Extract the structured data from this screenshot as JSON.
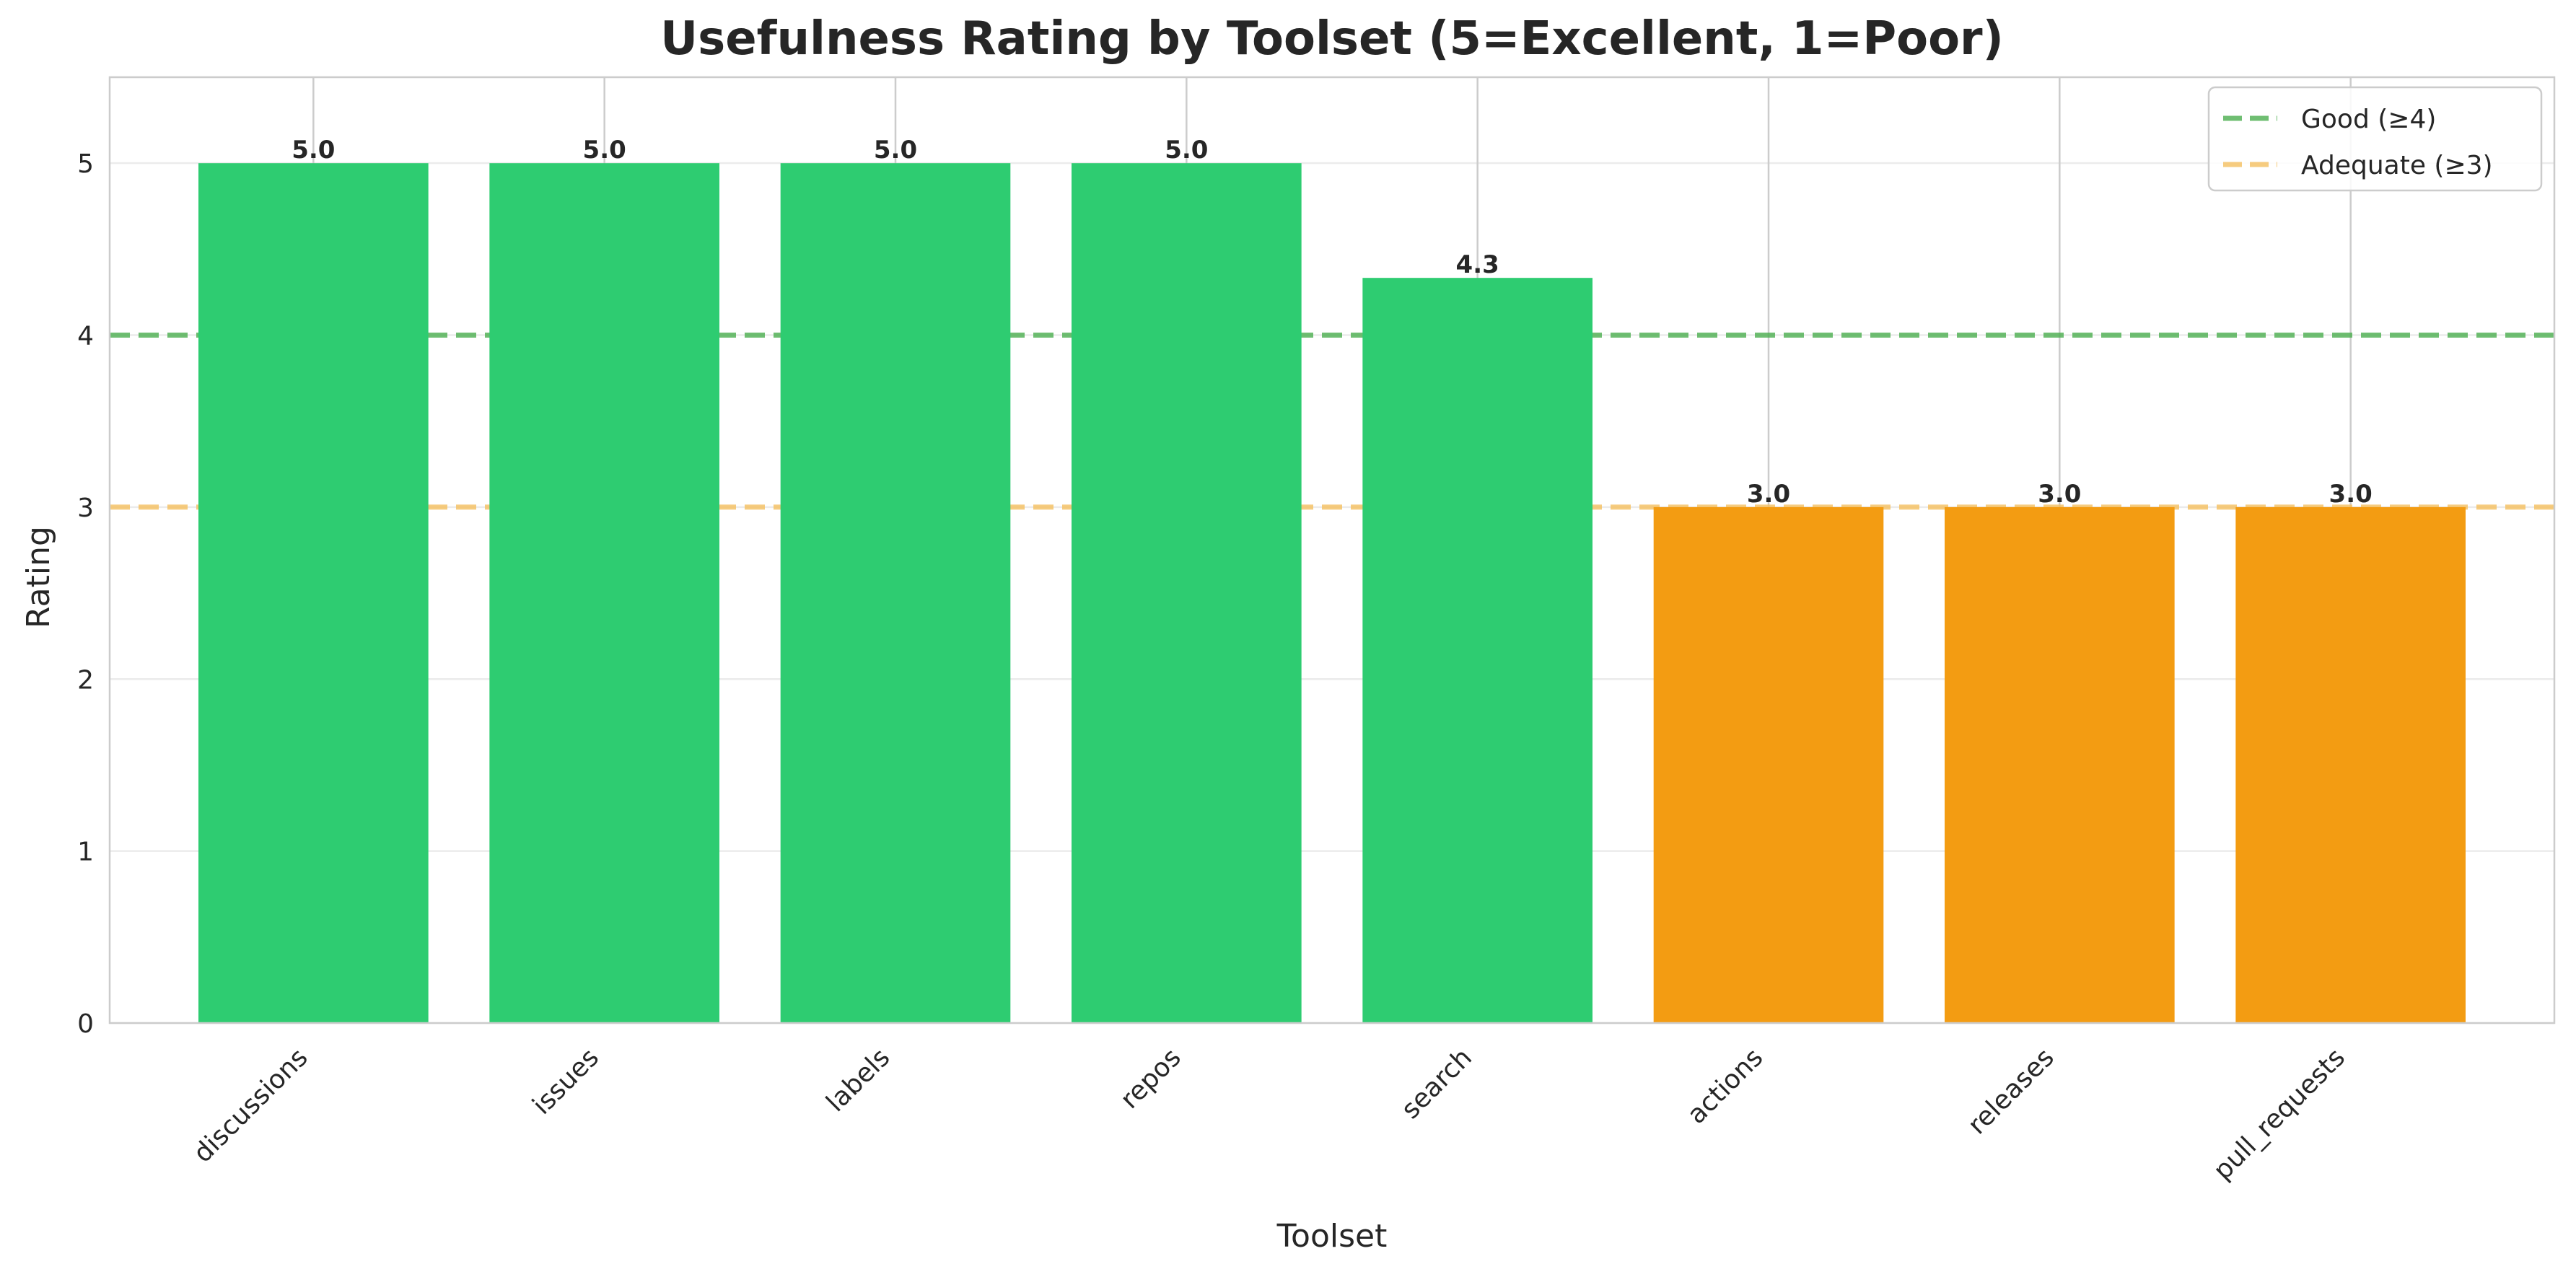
{
  "chart_data": {
    "type": "bar",
    "title": "Usefulness Rating by Toolset (5=Excellent, 1=Poor)",
    "xlabel": "Toolset",
    "ylabel": "Rating",
    "categories": [
      "discussions",
      "issues",
      "labels",
      "repos",
      "search",
      "actions",
      "releases",
      "pull_requests"
    ],
    "values": [
      5.0,
      5.0,
      5.0,
      5.0,
      4.333,
      3.0,
      3.0,
      3.0
    ],
    "value_labels": [
      "5.0",
      "5.0",
      "5.0",
      "5.0",
      "4.3",
      "3.0",
      "3.0",
      "3.0"
    ],
    "bar_colors": [
      "#2ecc71",
      "#2ecc71",
      "#2ecc71",
      "#2ecc71",
      "#2ecc71",
      "#f39c12",
      "#f39c12",
      "#f39c12"
    ],
    "ylim": [
      0,
      5.5
    ],
    "yticks": [
      0,
      1,
      2,
      3,
      4,
      5
    ],
    "grid": true,
    "reference_lines": [
      {
        "label": "Good (≥4)",
        "value": 4,
        "color": "#4caf50",
        "style": "dashed"
      },
      {
        "label": "Adequate (≥3)",
        "value": 3,
        "color": "#f5c060",
        "style": "dashed"
      }
    ],
    "legend_position": "top-right"
  }
}
